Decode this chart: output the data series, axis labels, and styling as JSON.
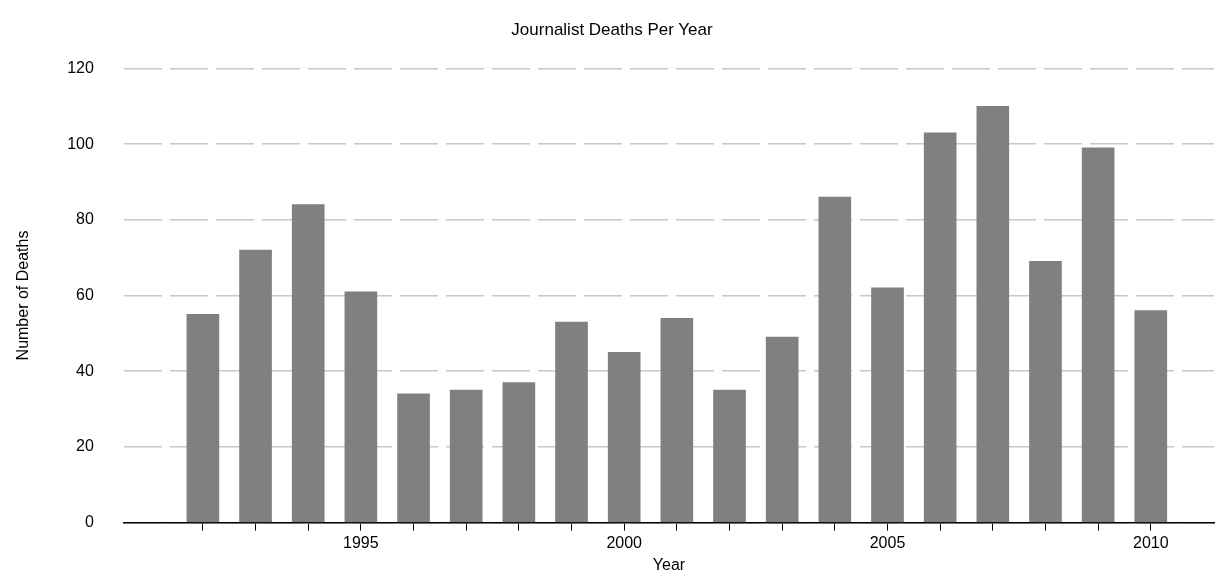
{
  "chart_data": {
    "type": "bar",
    "title": "Journalist Deaths Per Year",
    "xlabel": "Year",
    "ylabel": "Number of Deaths",
    "x": [
      1992,
      1993,
      1994,
      1995,
      1996,
      1997,
      1998,
      1999,
      2000,
      2001,
      2002,
      2003,
      2004,
      2005,
      2006,
      2007,
      2008,
      2009,
      2010
    ],
    "values": [
      55,
      72,
      84,
      61,
      34,
      35,
      37,
      53,
      45,
      54,
      35,
      49,
      86,
      62,
      103,
      110,
      69,
      99,
      56
    ],
    "color": "#808080",
    "xlim": [
      1990.5,
      2011.2
    ],
    "xticks": [
      {
        "value": 1992,
        "label": null
      },
      {
        "value": 1993,
        "label": null
      },
      {
        "value": 1994,
        "label": null
      },
      1995,
      {
        "value": 1996,
        "label": null
      },
      {
        "value": 1997,
        "label": null
      },
      {
        "value": 1998,
        "label": null
      },
      {
        "value": 1999,
        "label": null
      },
      2000,
      {
        "value": 2001,
        "label": null
      },
      {
        "value": 2002,
        "label": null
      },
      {
        "value": 2003,
        "label": null
      },
      {
        "value": 2004,
        "label": null
      },
      2005,
      {
        "value": 2006,
        "label": null
      },
      {
        "value": 2007,
        "label": null
      },
      {
        "value": 2008,
        "label": null
      },
      {
        "value": 2009,
        "label": null
      },
      2010
    ],
    "ylim": [
      0,
      120
    ],
    "yticks": [
      0,
      20,
      40,
      60,
      80,
      100,
      120
    ],
    "grid": "y",
    "legend": false
  }
}
